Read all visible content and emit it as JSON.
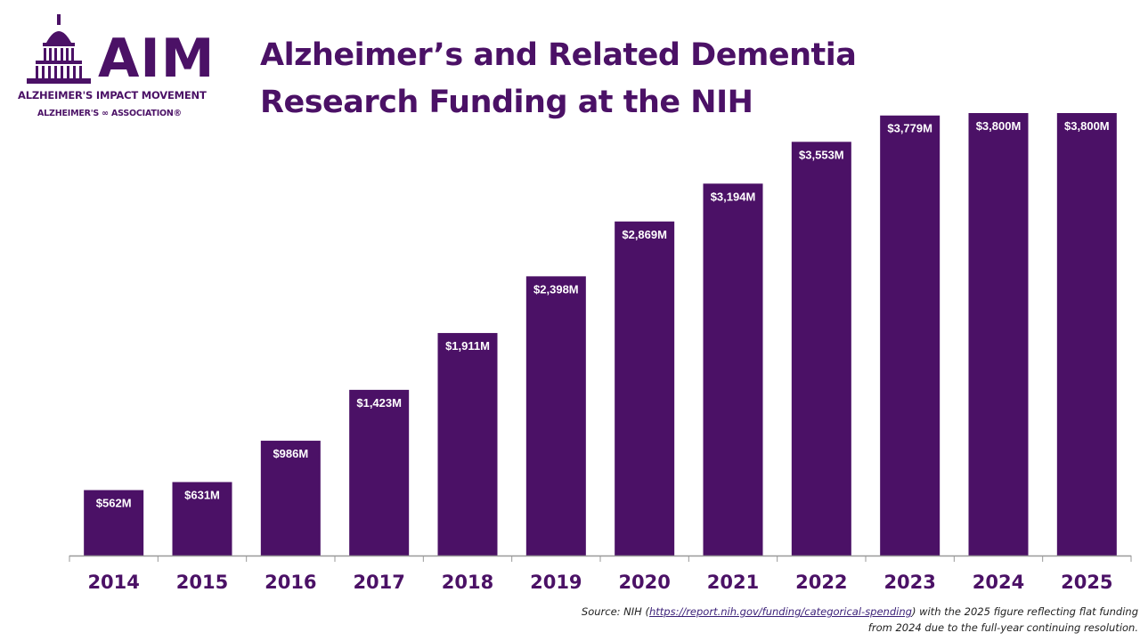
{
  "logo": {
    "wordmark": "AIM",
    "line1": "ALZHEIMER'S IMPACT MOVEMENT",
    "line2": "ALZHEIMER'S ∞ ASSOCIATION®"
  },
  "title_lines": [
    "Alzheimer’s and Related Dementia",
    "Research Funding at the NIH"
  ],
  "source": {
    "prefix": "Source: NIH (",
    "link": "https://report.nih.gov/funding/categorical-spending",
    "suffix_line1": ") with the 2025 figure reflecting flat funding",
    "line2": "from 2024 due to the full-year continuing resolution."
  },
  "colors": {
    "bar": "#4b1166",
    "title": "#4b1166",
    "axis": "#999999",
    "label": "#ffffff"
  },
  "chart_data": {
    "type": "bar",
    "title": "Alzheimer’s and Related Dementia Research Funding at the NIH",
    "categories": [
      "2014",
      "2015",
      "2016",
      "2017",
      "2018",
      "2019",
      "2020",
      "2021",
      "2022",
      "2023",
      "2024",
      "2025"
    ],
    "values": [
      562,
      631,
      986,
      1423,
      1911,
      2398,
      2869,
      3194,
      3553,
      3779,
      3800,
      3800
    ],
    "data_labels": [
      "$562M",
      "$631M",
      "$986M",
      "$1,423M",
      "$1,911M",
      "$2,398M",
      "$2,869M",
      "$3,194M",
      "$3,553M",
      "$3,779M",
      "$3,800M",
      "$3,800M"
    ],
    "unit": "$M",
    "ylim": [
      0,
      3800
    ],
    "grid": false,
    "legend": "none"
  }
}
